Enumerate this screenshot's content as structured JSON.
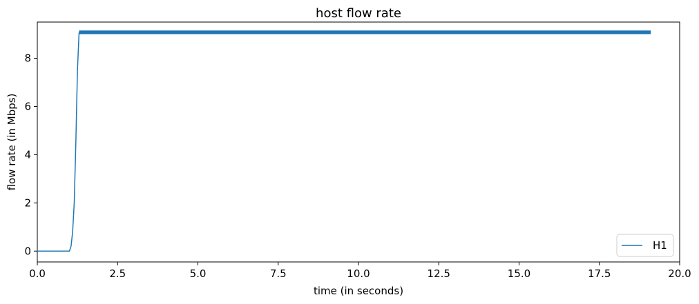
{
  "chart_data": {
    "type": "line",
    "title": "host flow rate",
    "xlabel": "time (in seconds)",
    "ylabel": "flow rate (in Mbps)",
    "xlim": [
      0,
      20
    ],
    "ylim": [
      -0.45,
      9.5
    ],
    "xticks": [
      0,
      2.5,
      5,
      7.5,
      10,
      12.5,
      15,
      17.5,
      20
    ],
    "xtick_labels": [
      "0.0",
      "2.5",
      "5.0",
      "7.5",
      "10.0",
      "12.5",
      "15.0",
      "17.5",
      "20.0"
    ],
    "yticks": [
      0,
      2,
      4,
      6,
      8
    ],
    "ytick_labels": [
      "0",
      "2",
      "4",
      "6",
      "8"
    ],
    "grid": false,
    "legend_position": "bottom-right",
    "series": [
      {
        "name": "H1",
        "color": "#1f77b4",
        "x": [
          0,
          0.5,
          1.0,
          1.05,
          1.1,
          1.15,
          1.2,
          1.25,
          1.3,
          1.35,
          19.1
        ],
        "y": [
          0,
          0,
          0,
          0.2,
          0.8,
          2.0,
          4.5,
          7.5,
          9.05,
          9.1,
          9.1
        ],
        "band": {
          "x_start": 1.3,
          "x_end": 19.1,
          "y_low": 9.0,
          "y_high": 9.15
        }
      }
    ]
  }
}
